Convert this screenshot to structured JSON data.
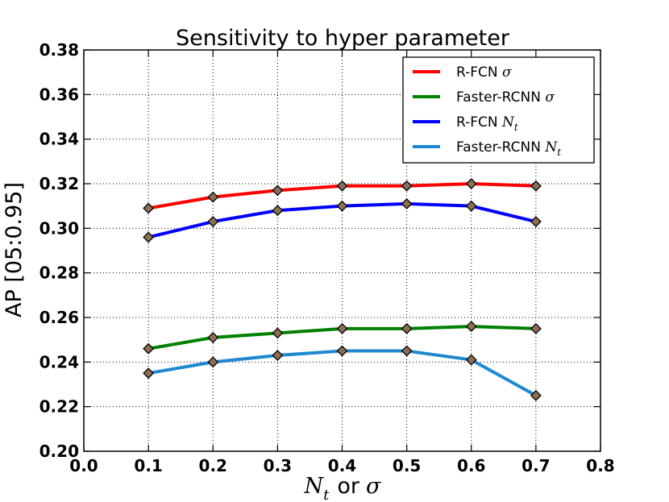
{
  "chart_data": {
    "type": "line",
    "title": "Sensitivity to hyper parameter",
    "xlabel": "N_t or σ",
    "xlabel_parts": {
      "symbol": "N",
      "subscript": "t",
      "joiner": "or",
      "sigma": "σ"
    },
    "ylabel": "AP [05:0.95]",
    "xlim": [
      0.0,
      0.8
    ],
    "ylim": [
      0.2,
      0.38
    ],
    "xticks": [
      0.0,
      0.1,
      0.2,
      0.3,
      0.4,
      0.5,
      0.6,
      0.7,
      0.8
    ],
    "xtick_labels": [
      "0.0",
      "0.1",
      "0.2",
      "0.3",
      "0.4",
      "0.5",
      "0.6",
      "0.7",
      "0.8"
    ],
    "yticks": [
      0.2,
      0.22,
      0.24,
      0.26,
      0.28,
      0.3,
      0.32,
      0.34,
      0.36,
      0.38
    ],
    "ytick_labels": [
      "0.20",
      "0.22",
      "0.24",
      "0.26",
      "0.28",
      "0.30",
      "0.32",
      "0.34",
      "0.36",
      "0.38"
    ],
    "grid": true,
    "legend_position": "top-right",
    "x": [
      0.1,
      0.2,
      0.3,
      0.4,
      0.5,
      0.6,
      0.7
    ],
    "series": [
      {
        "name": "R-FCN σ",
        "name_base": "R-FCN",
        "name_symbol": "σ",
        "name_sub": "",
        "color": "#ff0000",
        "values": [
          0.309,
          0.314,
          0.317,
          0.319,
          0.319,
          0.32,
          0.319
        ]
      },
      {
        "name": "Faster-RCNN σ",
        "name_base": "Faster-RCNN",
        "name_symbol": "σ",
        "name_sub": "",
        "color": "#008000",
        "values": [
          0.246,
          0.251,
          0.253,
          0.255,
          0.255,
          0.256,
          0.255
        ]
      },
      {
        "name": "R-FCN N_t",
        "name_base": "R-FCN",
        "name_symbol": "N",
        "name_sub": "t",
        "color": "#0000ff",
        "values": [
          0.296,
          0.303,
          0.308,
          0.31,
          0.311,
          0.31,
          0.303
        ]
      },
      {
        "name": "Faster-RCNN N_t",
        "name_base": "Faster-RCNN",
        "name_symbol": "N",
        "name_sub": "t",
        "color": "#1e88d0",
        "values": [
          0.235,
          0.24,
          0.243,
          0.245,
          0.245,
          0.241,
          0.225
        ]
      }
    ],
    "marker_color": "#8b6f55"
  }
}
